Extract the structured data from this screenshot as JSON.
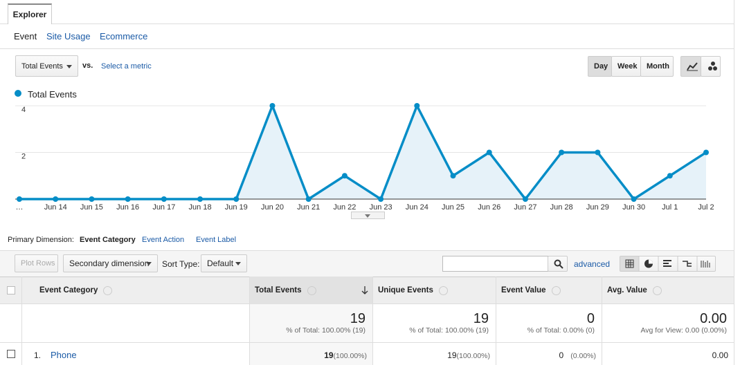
{
  "tabs": [
    "Explorer"
  ],
  "nav": [
    "Event",
    "Site Usage",
    "Ecommerce"
  ],
  "metric": {
    "selected": "Total Events",
    "vs": "vs.",
    "select": "Select a metric"
  },
  "periods": [
    "Day",
    "Week",
    "Month"
  ],
  "chart_data": {
    "type": "line",
    "categories": [
      "…",
      "Jun 14",
      "Jun 15",
      "Jun 16",
      "Jun 17",
      "Jun 18",
      "Jun 19",
      "Jun 20",
      "Jun 21",
      "Jun 22",
      "Jun 23",
      "Jun 24",
      "Jun 25",
      "Jun 26",
      "Jun 27",
      "Jun 28",
      "Jun 29",
      "Jun 30",
      "Jul 1",
      "Jul 2"
    ],
    "series": [
      {
        "name": "Total Events",
        "color": "#058dc7",
        "values": [
          0,
          0,
          0,
          0,
          0,
          0,
          0,
          4,
          0,
          1,
          0,
          4,
          1,
          2,
          0,
          2,
          2,
          0,
          1,
          2
        ]
      }
    ],
    "ylim": [
      0,
      4
    ],
    "yticks": [
      2,
      4
    ],
    "grid": true,
    "area": true,
    "area_color": "#e6f2f9"
  },
  "dimension": {
    "label": "Primary Dimension:",
    "options": [
      "Event Category",
      "Event Action",
      "Event Label"
    ]
  },
  "toolbar": {
    "plot_rows": "Plot Rows",
    "secondary": "Secondary dimension",
    "sort_label": "Sort Type:",
    "sort": "Default",
    "advanced": "advanced"
  },
  "table": {
    "headers": [
      "Event Category",
      "Total Events",
      "Unique Events",
      "Event Value",
      "Avg. Value"
    ],
    "totals": [
      {
        "value": 19,
        "note": "% of Total: 100.00% (19)"
      },
      {
        "value": 19,
        "note": "% of Total: 100.00% (19)"
      },
      {
        "value": 0,
        "note": "% of Total: 0.00% (0)"
      },
      {
        "value": "0.00",
        "note": "Avg for View: 0.00 (0.00%)"
      }
    ],
    "rows": [
      {
        "index": "1.",
        "category": "Phone",
        "cells": [
          {
            "value": 19,
            "pct": "(100.00%)"
          },
          {
            "value": 19,
            "pct": "(100.00%)"
          },
          {
            "value": 0,
            "pct": "(0.00%)"
          },
          {
            "value": "0.00"
          }
        ]
      }
    ]
  }
}
